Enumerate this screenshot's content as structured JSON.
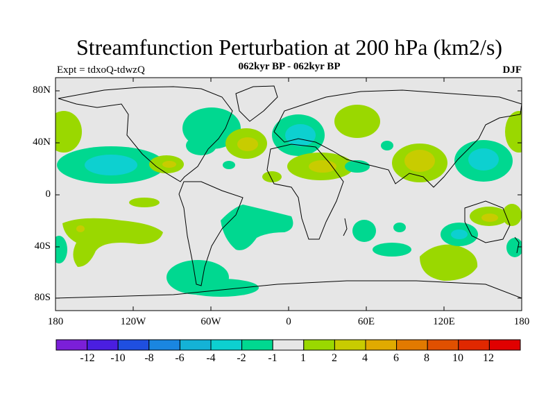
{
  "title": "Streamfunction Perturbation at 200 hPa (km2/s)",
  "subtitle": "062kyr BP - 062kyr BP",
  "experiment": "Expt = tdxoQ-tdwzQ",
  "season": "DJF",
  "colors": {
    "background": "#e6e6e6",
    "levels": [
      "#7b1fd8",
      "#4a1ee0",
      "#1f4fe0",
      "#1a86e0",
      "#14b2d6",
      "#0dd0d0",
      "#00d890",
      "#e6e6e6",
      "#9ad800",
      "#c8cc00",
      "#e0aa00",
      "#e27a00",
      "#e05000",
      "#e02800",
      "#e00000"
    ]
  },
  "map": {
    "y_ticks": [
      "80N",
      "40N",
      "0",
      "40S",
      "80S"
    ],
    "x_ticks": [
      "180",
      "120W",
      "60W",
      "0",
      "60E",
      "120E",
      "180"
    ]
  },
  "colorbar": {
    "labels": [
      "-12",
      "-10",
      "-8",
      "-6",
      "-4",
      "-2",
      "-1",
      "1",
      "2",
      "4",
      "6",
      "8",
      "10",
      "12"
    ]
  }
}
